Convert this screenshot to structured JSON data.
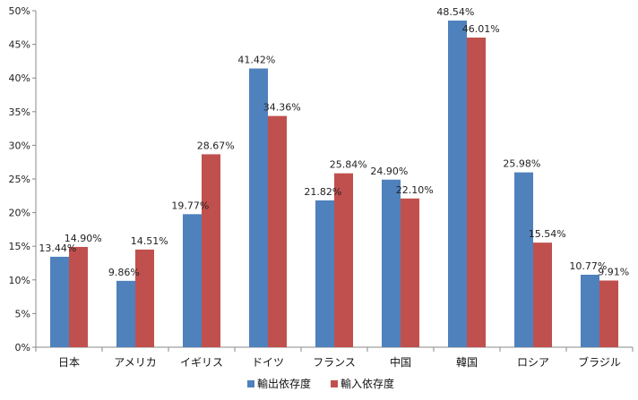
{
  "chart_data": {
    "type": "bar",
    "categories": [
      "日本",
      "アメリカ",
      "イギリス",
      "ドイツ",
      "フランス",
      "中国",
      "韓国",
      "ロシア",
      "ブラジル"
    ],
    "series": [
      {
        "name": "輸出依存度",
        "color": "#4F81BD",
        "values": [
          13.44,
          9.86,
          19.77,
          41.42,
          21.82,
          24.9,
          48.54,
          25.98,
          10.77
        ],
        "labels": [
          "13.44%",
          "9.86%",
          "19.77%",
          "41.42%",
          "21.82%",
          "24.90%",
          "48.54%",
          "25.98%",
          "10.77%"
        ]
      },
      {
        "name": "輸入依存度",
        "color": "#C0504D",
        "values": [
          14.9,
          14.51,
          28.67,
          34.36,
          25.84,
          22.1,
          46.01,
          15.54,
          9.91
        ],
        "labels": [
          "14.90%",
          "14.51%",
          "28.67%",
          "34.36%",
          "25.84%",
          "22.10%",
          "46.01%",
          "15.54%",
          "9.91%"
        ]
      }
    ],
    "yticks": [
      "0%",
      "5%",
      "10%",
      "15%",
      "20%",
      "25%",
      "30%",
      "35%",
      "40%",
      "45%",
      "50%"
    ],
    "ylim": [
      0,
      50
    ],
    "grid": false,
    "legend_position": "bottom"
  }
}
